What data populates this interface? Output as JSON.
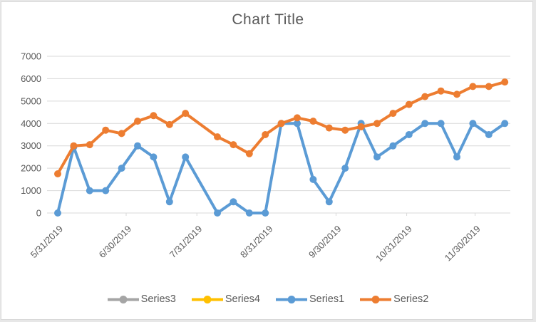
{
  "frame": {
    "background": "#ffffff",
    "border_color": "#d9d9d9",
    "outside_color": "#e7e7e7"
  },
  "chart_data": {
    "type": "line",
    "title": "Chart Title",
    "grid": "horizontal",
    "legend_position": "bottom",
    "gridline_color": "#d9d9d9",
    "axis_text_color": "#595959",
    "ylim": [
      0,
      7000
    ],
    "y_axis": {
      "ticks": [
        0,
        1000,
        2000,
        3000,
        4000,
        5000,
        6000,
        7000
      ]
    },
    "x_axis": {
      "tick_labels": [
        "5/31/2019",
        "6/30/2019",
        "7/31/2019",
        "8/31/2019",
        "9/30/2019",
        "10/31/2019",
        "11/30/2019"
      ],
      "tick_day_offsets": [
        0,
        30,
        61,
        92,
        122,
        153,
        183
      ]
    },
    "x": [
      "5/31/2019",
      "6/7/2019",
      "6/14/2019",
      "6/21/2019",
      "6/28/2019",
      "7/5/2019",
      "7/12/2019",
      "7/19/2019",
      "7/26/2019",
      "8/9/2019",
      "8/16/2019",
      "8/23/2019",
      "8/30/2019",
      "9/6/2019",
      "9/13/2019",
      "9/20/2019",
      "9/27/2019",
      "10/4/2019",
      "10/11/2019",
      "10/18/2019",
      "10/25/2019",
      "11/1/2019",
      "11/8/2019",
      "11/15/2019",
      "11/22/2019",
      "11/29/2019",
      "12/6/2019",
      "12/13/2019"
    ],
    "x_day_offsets": [
      0,
      7,
      14,
      21,
      28,
      35,
      42,
      49,
      56,
      70,
      77,
      84,
      91,
      98,
      105,
      112,
      119,
      126,
      133,
      140,
      147,
      154,
      161,
      168,
      175,
      182,
      189,
      196
    ],
    "series": [
      {
        "name": "Series3",
        "color": "#a5a5a5",
        "values": []
      },
      {
        "name": "Series4",
        "color": "#ffc000",
        "values": []
      },
      {
        "name": "Series1",
        "color": "#5b9bd5",
        "values": [
          0,
          2950,
          1000,
          1000,
          2000,
          3000,
          2500,
          500,
          2500,
          0,
          500,
          0,
          0,
          4000,
          4000,
          1500,
          500,
          2000,
          4000,
          2500,
          3000,
          3500,
          4000,
          4000,
          2500,
          4000,
          3500,
          4000
        ]
      },
      {
        "name": "Series2",
        "color": "#ed7d31",
        "values": [
          1750,
          3000,
          3050,
          3700,
          3550,
          4100,
          4350,
          3950,
          4450,
          3400,
          3050,
          2650,
          3500,
          4000,
          4250,
          4100,
          3800,
          3700,
          3850,
          4000,
          4450,
          4850,
          5200,
          5450,
          5300,
          5650,
          5650,
          5850
        ]
      }
    ]
  }
}
